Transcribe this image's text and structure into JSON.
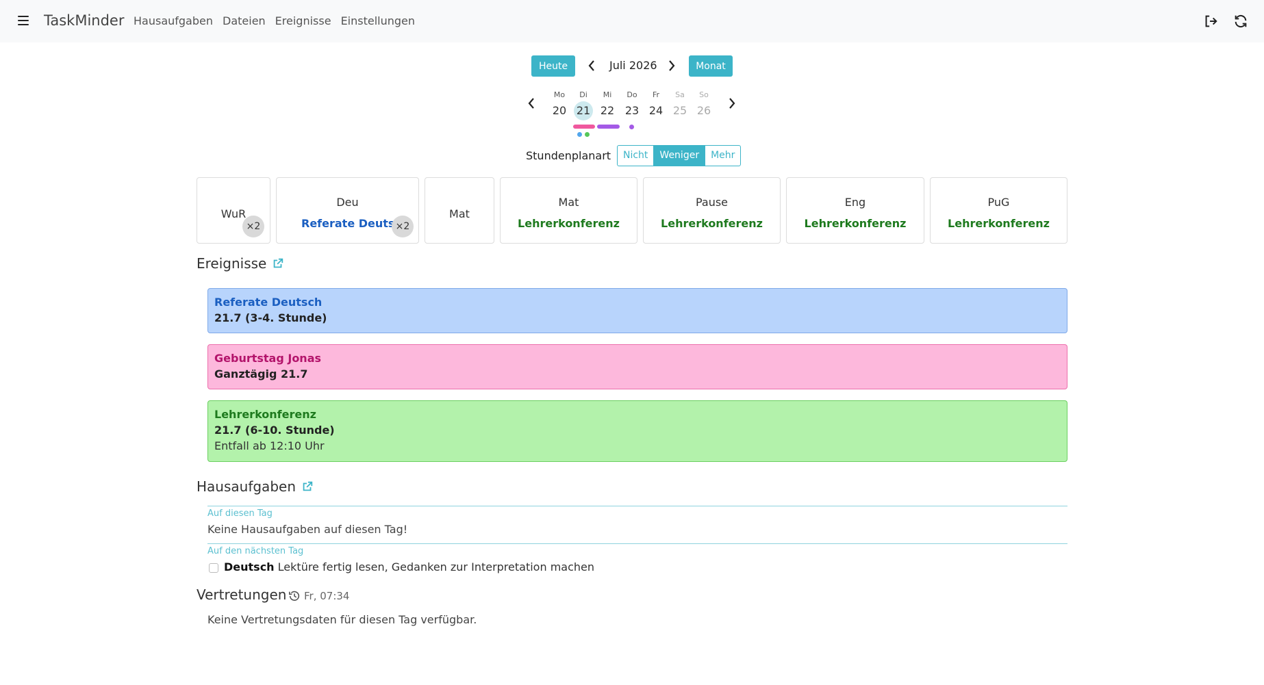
{
  "app": {
    "brand": "TaskMinder"
  },
  "nav": {
    "links": [
      "Hausaufgaben",
      "Dateien",
      "Ereignisse",
      "Einstellungen"
    ],
    "icons": [
      "menu-icon",
      "logout-icon",
      "refresh-icon"
    ]
  },
  "datenav": {
    "today_label": "Heute",
    "month_label": "Juli 2026",
    "view_label": "Monat"
  },
  "week": {
    "days": [
      {
        "name": "Mo",
        "date": "20"
      },
      {
        "name": "Di",
        "date": "21"
      },
      {
        "name": "Mi",
        "date": "22"
      },
      {
        "name": "Do",
        "date": "23"
      },
      {
        "name": "Fr",
        "date": "24"
      },
      {
        "name": "Sa",
        "date": "25"
      },
      {
        "name": "So",
        "date": "26"
      }
    ],
    "selected": "21"
  },
  "schedule_mode": {
    "label": "Stundenplanart",
    "options": [
      "Nicht",
      "Weniger",
      "Mehr"
    ],
    "selected": "Weniger"
  },
  "lessons": [
    {
      "subject": "WuR",
      "event": "",
      "badge": "×2"
    },
    {
      "subject": "Deu",
      "event": "Referate Deutsch",
      "badge": "×2"
    },
    {
      "subject": "Mat",
      "event": "",
      "badge": ""
    },
    {
      "subject": "Mat",
      "event": "Lehrerkonferenz",
      "badge": ""
    },
    {
      "subject": "Pause",
      "event": "Lehrerkonferenz",
      "badge": ""
    },
    {
      "subject": "Eng",
      "event": "Lehrerkonferenz",
      "badge": ""
    },
    {
      "subject": "PuG",
      "event": "Lehrerkonferenz",
      "badge": ""
    }
  ],
  "events_section": {
    "title": "Ereignisse"
  },
  "events": [
    {
      "title": "Referate Deutsch",
      "when": "21.7 (3-4. Stunde)",
      "extra": "",
      "color": "#b8d4fc"
    },
    {
      "title": "Geburtstag Jonas",
      "when": "Ganztägig 21.7",
      "extra": "",
      "color": "#fdb8dc"
    },
    {
      "title": "Lehrerkonferenz",
      "when": "21.7 (6-10. Stunde)",
      "extra": "Entfall ab 12:10 Uhr",
      "color": "#b3f2ab"
    }
  ],
  "homework_section": {
    "title": "Hausaufgaben",
    "today_label": "Auf diesen Tag",
    "today_empty": "Keine Hausaufgaben auf diesen Tag!",
    "next_label": "Auf den nächsten Tag",
    "next_items": [
      {
        "subject": "Deutsch",
        "text": "Lektüre fertig lesen, Gedanken zur Interpretation machen",
        "done": false
      }
    ]
  },
  "substitutions_section": {
    "title": "Vertretungen",
    "updated": "Fr, 07:34",
    "empty": "Keine Vertretungsdaten für diesen Tag verfügbar."
  },
  "colors": {
    "accent": "#3cb4c8"
  }
}
